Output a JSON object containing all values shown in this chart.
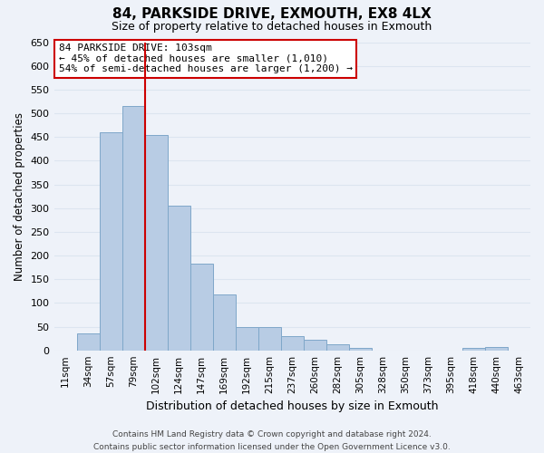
{
  "title": "84, PARKSIDE DRIVE, EXMOUTH, EX8 4LX",
  "subtitle": "Size of property relative to detached houses in Exmouth",
  "xlabel": "Distribution of detached houses by size in Exmouth",
  "ylabel": "Number of detached properties",
  "bar_labels": [
    "11sqm",
    "34sqm",
    "57sqm",
    "79sqm",
    "102sqm",
    "124sqm",
    "147sqm",
    "169sqm",
    "192sqm",
    "215sqm",
    "237sqm",
    "260sqm",
    "282sqm",
    "305sqm",
    "328sqm",
    "350sqm",
    "373sqm",
    "395sqm",
    "418sqm",
    "440sqm",
    "463sqm"
  ],
  "bar_heights": [
    0,
    35,
    460,
    515,
    455,
    305,
    183,
    118,
    50,
    50,
    30,
    22,
    13,
    5,
    0,
    0,
    0,
    0,
    5,
    7,
    0
  ],
  "bar_color": "#b8cce4",
  "bar_edgecolor": "#7fa7c9",
  "vline_index": 4,
  "vline_color": "#cc0000",
  "ylim": [
    0,
    650
  ],
  "yticks": [
    0,
    50,
    100,
    150,
    200,
    250,
    300,
    350,
    400,
    450,
    500,
    550,
    600,
    650
  ],
  "annotation_title": "84 PARKSIDE DRIVE: 103sqm",
  "annotation_line1": "← 45% of detached houses are smaller (1,010)",
  "annotation_line2": "54% of semi-detached houses are larger (1,200) →",
  "annotation_box_color": "#ffffff",
  "annotation_box_edgecolor": "#cc0000",
  "footer_line1": "Contains HM Land Registry data © Crown copyright and database right 2024.",
  "footer_line2": "Contains public sector information licensed under the Open Government Licence v3.0.",
  "background_color": "#eef2f9",
  "grid_color": "#dce5f0"
}
